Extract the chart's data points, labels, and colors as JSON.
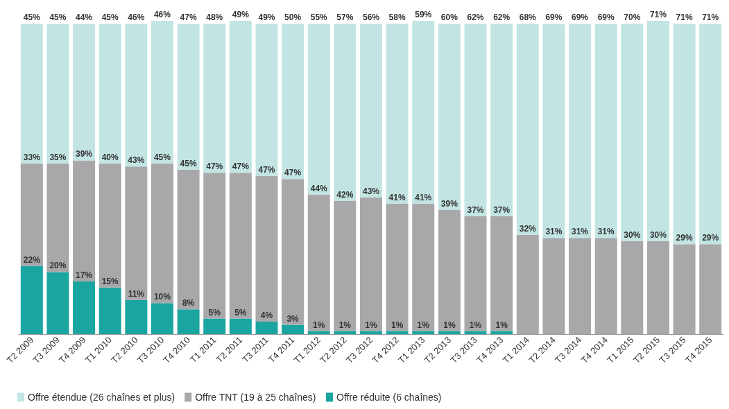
{
  "chart_data": {
    "type": "bar",
    "stacked": true,
    "legend": "bottom left",
    "categories": [
      "T2 2009",
      "T3 2009",
      "T4 2009",
      "T1 2010",
      "T2 2010",
      "T3 2010",
      "T4 2010",
      "T1 2011",
      "T2 2011",
      "T3 2011",
      "T4 2011",
      "T1 2012",
      "T2 2012",
      "T3 2012",
      "T4 2012",
      "T1 2013",
      "T2 2013",
      "T3 2013",
      "T4 2013",
      "T1 2014",
      "T2 2014",
      "T3 2014",
      "T4 2014",
      "T1 2015",
      "T2 2015",
      "T3 2015",
      "T4 2015"
    ],
    "series": [
      {
        "name": "Offre réduite (6 chaînes)",
        "color": "#1aa5a0",
        "values": [
          22,
          20,
          17,
          15,
          11,
          10,
          8,
          5,
          5,
          4,
          3,
          1,
          1,
          1,
          1,
          1,
          1,
          1,
          1,
          null,
          null,
          null,
          null,
          null,
          null,
          null,
          null
        ],
        "value_labels": [
          "22%",
          "20%",
          "17%",
          "15%",
          "11%",
          "10%",
          "8%",
          "5%",
          "5%",
          "4%",
          "3%",
          "1%",
          "1%",
          "1%",
          "1%",
          "1%",
          "1%",
          "1%",
          "1%",
          null,
          null,
          null,
          null,
          null,
          null,
          null,
          null
        ]
      },
      {
        "name": "Offre TNT (19 à 25 chaînes)",
        "color": "#a8a8ab",
        "values": [
          33,
          35,
          39,
          40,
          43,
          45,
          45,
          47,
          47,
          47,
          47,
          44,
          42,
          43,
          41,
          41,
          39,
          37,
          37,
          32,
          31,
          31,
          31,
          30,
          30,
          29,
          29
        ],
        "value_labels": [
          "33%",
          "35%",
          "39%",
          "40%",
          "43%",
          "45%",
          "45%",
          "47%",
          "47%",
          "47%",
          "47%",
          "44%",
          "42%",
          "43%",
          "41%",
          "41%",
          "39%",
          "37%",
          "37%",
          "32%",
          "31%",
          "31%",
          "31%",
          "30%",
          "30%",
          "29%",
          "29%"
        ]
      },
      {
        "name": "Offre étendue (26 chaînes et plus)",
        "color": "#c2e5e3",
        "values": [
          45,
          45,
          44,
          45,
          46,
          46,
          47,
          48,
          49,
          49,
          50,
          55,
          57,
          56,
          58,
          59,
          60,
          62,
          62,
          68,
          69,
          69,
          69,
          70,
          71,
          71,
          71
        ],
        "value_labels": [
          "45%",
          "45%",
          "44%",
          "45%",
          "46%",
          "46%",
          "47%",
          "48%",
          "49%",
          "49%",
          "50%",
          "55%",
          "57%",
          "56%",
          "58%",
          "59%",
          "60%",
          "62%",
          "62%",
          "68%",
          "69%",
          "69%",
          "69%",
          "70%",
          "71%",
          "71%",
          "71%"
        ]
      }
    ]
  }
}
